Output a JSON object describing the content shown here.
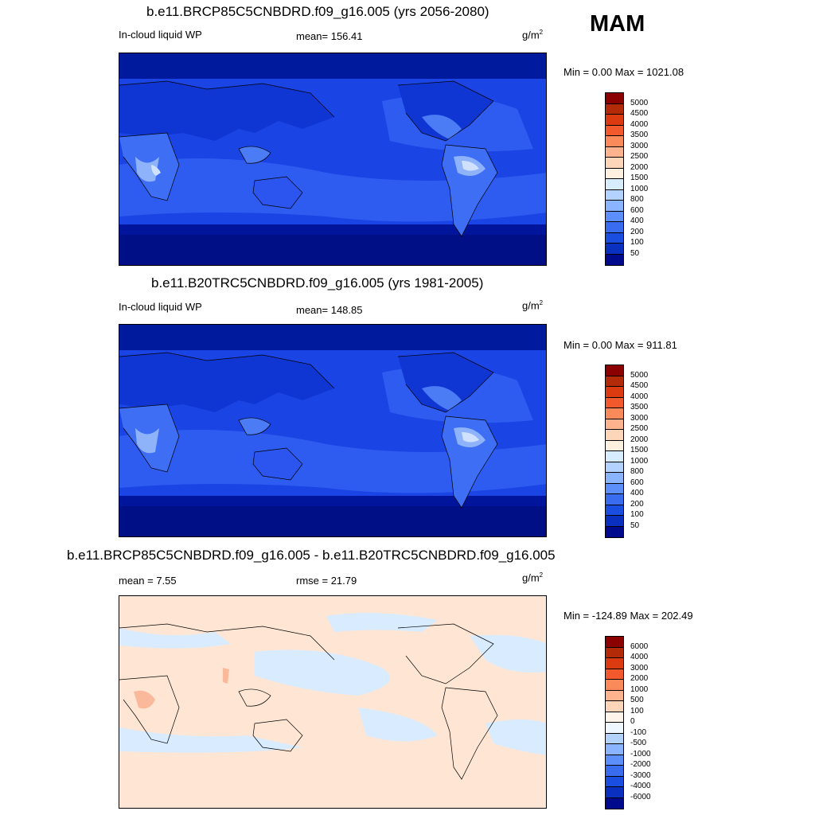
{
  "season": "MAM",
  "panels": [
    {
      "title": "b.e11.BRCP85C5CNBDRD.f09_g16.005 (yrs 2056-2080)",
      "left_label": "In-cloud liquid WP",
      "mid_label": "mean= 156.41",
      "units_base": "g/m",
      "units_exp": "2",
      "minmax": "Min =   0.00 Max = 1021.08"
    },
    {
      "title": "b.e11.B20TRC5CNBDRD.f09_g16.005 (yrs 1981-2005)",
      "left_label": "In-cloud liquid WP",
      "mid_label": "mean= 148.85",
      "units_base": "g/m",
      "units_exp": "2",
      "minmax": "Min =   0.00 Max = 911.81"
    },
    {
      "title": "b.e11.BRCP85C5CNBDRD.f09_g16.005 - b.e11.B20TRC5CNBDRD.f09_g16.005",
      "left_label": "mean =   7.55",
      "mid_label": "rmse =  21.79",
      "units_base": "g/m",
      "units_exp": "2",
      "minmax": "Min = -124.89 Max = 202.49"
    }
  ],
  "colorbar_main": {
    "colors": [
      "#8b0000",
      "#b22a08",
      "#dc3a10",
      "#f25a2e",
      "#fb8a5a",
      "#fdb48e",
      "#fdd5b8",
      "#fff0e0",
      "#d8ecff",
      "#b4d2ff",
      "#8ab4ff",
      "#5d8ffa",
      "#3a6cf0",
      "#1a4ee0",
      "#0a30c0",
      "#000a8c"
    ],
    "labels": [
      "5000",
      "4500",
      "4000",
      "3500",
      "3000",
      "2500",
      "2000",
      "1500",
      "1000",
      "800",
      "600",
      "400",
      "200",
      "100",
      "50"
    ]
  },
  "colorbar_diff": {
    "colors": [
      "#8b0000",
      "#b22a08",
      "#dc3a10",
      "#f25a2e",
      "#fb8a5a",
      "#fdb48e",
      "#fdd5b8",
      "#fff4ea",
      "#eef6ff",
      "#b4d2ff",
      "#8ab4ff",
      "#5d8ffa",
      "#3a6cf0",
      "#1a4ee0",
      "#0a30c0",
      "#000a8c"
    ],
    "labels": [
      "6000",
      "4000",
      "3000",
      "2000",
      "1000",
      "500",
      "100",
      "0",
      "-100",
      "-500",
      "-1000",
      "-2000",
      "-3000",
      "-4000",
      "-6000"
    ]
  },
  "colors": {
    "ocean_main": "#1a44e4",
    "ocean_light": "#2f5cf0",
    "polar_dark": "#00159c",
    "land_light": "#6f96f6",
    "land_pale": "#cfe1ff",
    "diff_pos": "#ffe6d4",
    "diff_neg": "#d8ebff",
    "diff_strong": "#fbb99b"
  }
}
